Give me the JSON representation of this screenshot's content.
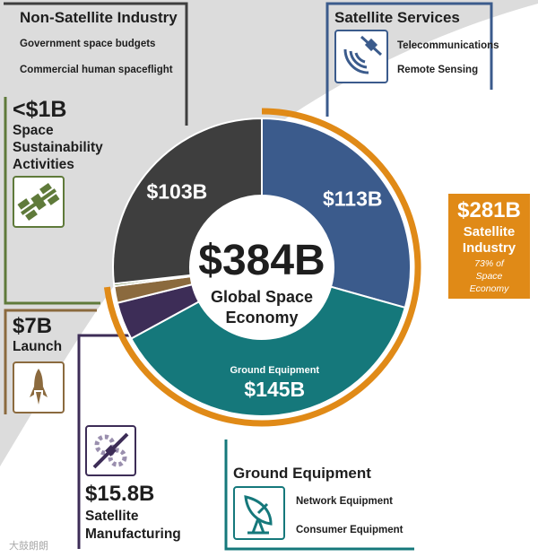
{
  "colors": {
    "non_satellite": "#3e3e3e",
    "satellite_services": "#3b5b8c",
    "ground_equipment": "#15787b",
    "satellite_industry": "#e08a17",
    "launch": "#8b6a3e",
    "manufacturing": "#3d2d57",
    "sustainability": "#5f7a3a"
  },
  "center": {
    "value": "$384B",
    "line1": "Global Space",
    "line2": "Economy"
  },
  "non_satellite": {
    "title": "Non-Satellite Industry",
    "items": [
      "Government space budgets",
      "Commercial human spaceflight"
    ]
  },
  "satellite_services": {
    "title": "Satellite Services",
    "items": [
      "Telecommunications",
      "Remote Sensing"
    ],
    "icon": "satellite-dish-icon"
  },
  "ground_equipment": {
    "title": "Ground Equipment",
    "items": [
      "Network Equipment",
      "Consumer Equipment"
    ],
    "icon": "ground-antenna-icon"
  },
  "satellite_industry": {
    "value": "$281B",
    "line1": "Satellite",
    "line2": "Industry",
    "note1": "73% of",
    "note2": "Space",
    "note3": "Economy"
  },
  "sustainability": {
    "value": "<$1B",
    "line1": "Space",
    "line2": "Sustainability",
    "line3": "Activities",
    "icon": "space-station-icon"
  },
  "launch": {
    "value": "$7B",
    "label": "Launch",
    "icon": "rocket-icon"
  },
  "manufacturing": {
    "value": "$15.8B",
    "line1": "Satellite",
    "line2": "Manufacturing",
    "icon": "satellite-gear-icon"
  },
  "watermark": "大鼓朗朗",
  "chart_data": {
    "type": "pie",
    "donut": true,
    "title": "",
    "total": 384,
    "unit": "$B",
    "slices": [
      {
        "name": "Satellite Services",
        "value": 113,
        "label": "$113B"
      },
      {
        "name": "Ground Equipment",
        "value": 145,
        "label": "$145B",
        "sublabel": "Ground Equipment"
      },
      {
        "name": "Satellite Manufacturing",
        "value": 15.8,
        "label": ""
      },
      {
        "name": "Launch",
        "value": 7,
        "label": ""
      },
      {
        "name": "Space Sustainability Activities",
        "value": 1,
        "label": ""
      },
      {
        "name": "Non-Satellite Industry",
        "value": 103,
        "label": "$103B"
      }
    ]
  }
}
